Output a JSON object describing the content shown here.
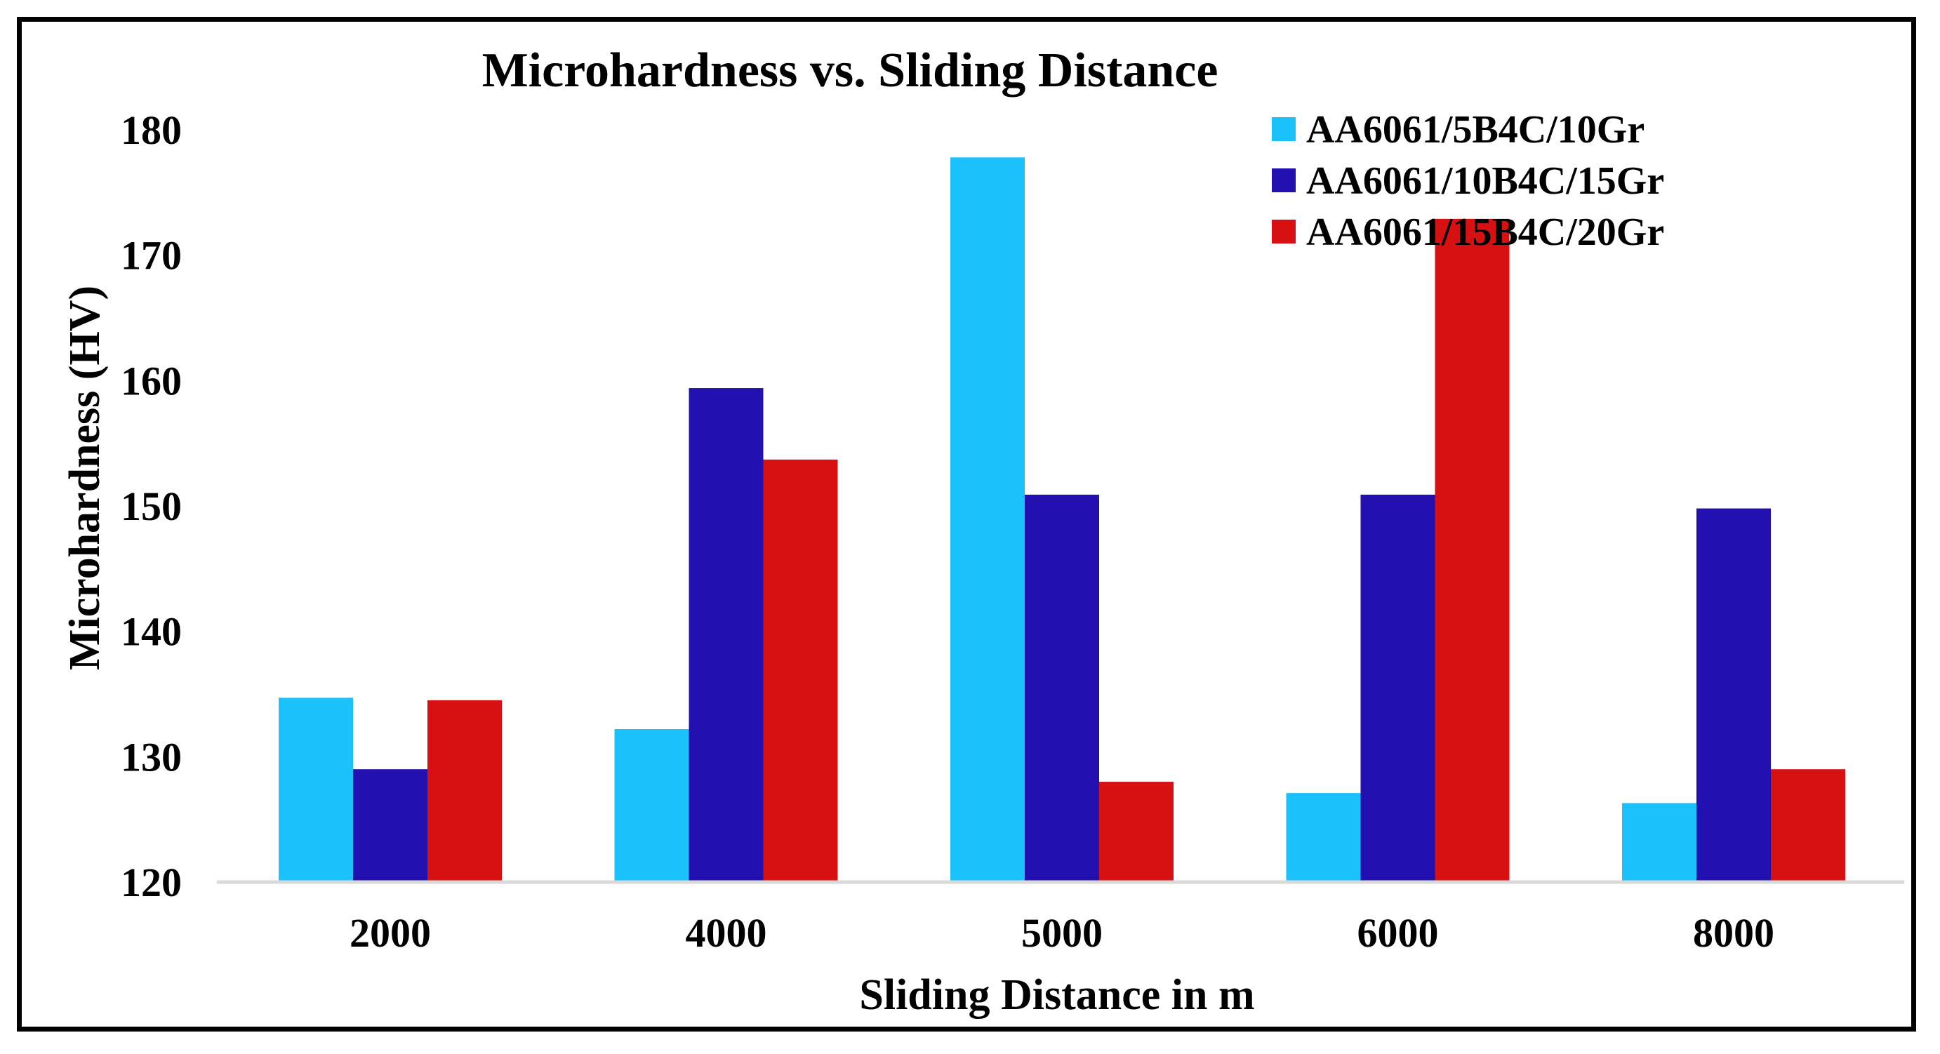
{
  "chart_data": {
    "type": "bar",
    "title": "Microhardness vs. Sliding Distance",
    "xlabel": "Sliding Distance in m",
    "ylabel": "Microhardness (HV)",
    "ylim": [
      120,
      180
    ],
    "yticks": [
      "120",
      "130",
      "140",
      "150",
      "160",
      "170",
      "180"
    ],
    "categories": [
      "2000",
      "4000",
      "5000",
      "6000",
      "8000"
    ],
    "legend_position": "top-right",
    "grid": false,
    "series": [
      {
        "name": "AA6061/5B4C/10Gr",
        "color": "#1bc1fb",
        "values": [
          134.7,
          132.2,
          177.8,
          127.1,
          126.3
        ]
      },
      {
        "name": "AA6061/10B4C/15Gr",
        "color": "#2310b0",
        "values": [
          129.0,
          159.4,
          150.9,
          150.9,
          149.8
        ]
      },
      {
        "name": "AA6061/15B4C/20Gr",
        "color": "#d71012",
        "values": [
          134.5,
          153.7,
          128.0,
          172.9,
          129.0
        ]
      }
    ]
  }
}
